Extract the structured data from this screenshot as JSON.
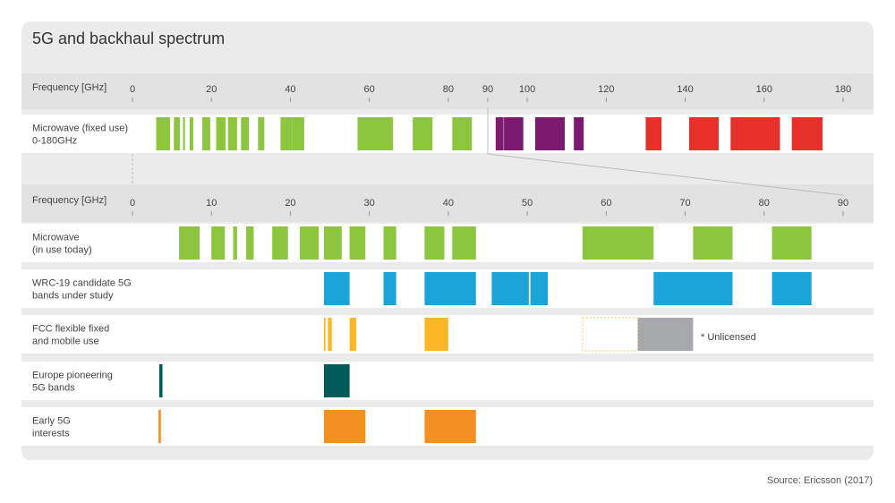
{
  "title": "5G and backhaul spectrum",
  "source": "Source: Ericsson (2017)",
  "chart_data": [
    {
      "type": "bar",
      "axis_label": "Frequency [GHz]",
      "xlim": [
        0,
        180
      ],
      "ticks": [
        0,
        20,
        40,
        60,
        80,
        90,
        100,
        120,
        140,
        160,
        180
      ],
      "rows": [
        {
          "label": "Microwave (fixed use)\n0-180GHz",
          "bands": [
            {
              "start": 6,
              "end": 9.5,
              "color": "#8cc63f"
            },
            {
              "start": 10.5,
              "end": 12,
              "color": "#8cc63f"
            },
            {
              "start": 12.8,
              "end": 13.3,
              "color": "#8cc63f"
            },
            {
              "start": 14.5,
              "end": 15.4,
              "color": "#8cc63f"
            },
            {
              "start": 17.7,
              "end": 19.7,
              "color": "#8cc63f"
            },
            {
              "start": 21.2,
              "end": 23.6,
              "color": "#8cc63f"
            },
            {
              "start": 24.2,
              "end": 26.5,
              "color": "#8cc63f"
            },
            {
              "start": 27.5,
              "end": 29.5,
              "color": "#8cc63f"
            },
            {
              "start": 31.8,
              "end": 33.4,
              "color": "#8cc63f"
            },
            {
              "start": 37.5,
              "end": 40.5,
              "color": "#8cc63f"
            },
            {
              "start": 40.5,
              "end": 43.5,
              "color": "#8cc63f"
            },
            {
              "start": 57,
              "end": 66,
              "color": "#8cc63f"
            },
            {
              "start": 71,
              "end": 76,
              "color": "#8cc63f"
            },
            {
              "start": 81,
              "end": 86,
              "color": "#8cc63f"
            },
            {
              "start": 92,
              "end": 94,
              "color": "#7b1a6f"
            },
            {
              "start": 94.1,
              "end": 99,
              "color": "#7b1a6f"
            },
            {
              "start": 102,
              "end": 109.5,
              "color": "#7b1a6f"
            },
            {
              "start": 111.8,
              "end": 114.3,
              "color": "#7b1a6f"
            },
            {
              "start": 130,
              "end": 134,
              "color": "#e8302b"
            },
            {
              "start": 141,
              "end": 148.5,
              "color": "#e8302b"
            },
            {
              "start": 151.5,
              "end": 164,
              "color": "#e8302b"
            },
            {
              "start": 167,
              "end": 174.8,
              "color": "#e8302b"
            }
          ]
        }
      ]
    },
    {
      "type": "bar",
      "axis_label": "Frequency [GHz]",
      "xlim": [
        0,
        90
      ],
      "ticks": [
        0,
        10,
        20,
        30,
        40,
        50,
        60,
        70,
        80,
        90
      ],
      "annotation": "* Unlicensed",
      "rows": [
        {
          "label": "Microwave\n(in use today)",
          "bands": [
            {
              "start": 5.9,
              "end": 8.5,
              "color": "#8cc63f"
            },
            {
              "start": 10,
              "end": 11.7,
              "color": "#8cc63f"
            },
            {
              "start": 12.75,
              "end": 13.25,
              "color": "#8cc63f"
            },
            {
              "start": 14.4,
              "end": 15.35,
              "color": "#8cc63f"
            },
            {
              "start": 17.7,
              "end": 19.7,
              "color": "#8cc63f"
            },
            {
              "start": 21.2,
              "end": 23.6,
              "color": "#8cc63f"
            },
            {
              "start": 24.25,
              "end": 26.5,
              "color": "#8cc63f"
            },
            {
              "start": 27.5,
              "end": 29.5,
              "color": "#8cc63f"
            },
            {
              "start": 31.8,
              "end": 33.4,
              "color": "#8cc63f"
            },
            {
              "start": 37,
              "end": 39.5,
              "color": "#8cc63f"
            },
            {
              "start": 40.5,
              "end": 43.5,
              "color": "#8cc63f"
            },
            {
              "start": 57,
              "end": 66,
              "color": "#8cc63f"
            },
            {
              "start": 71,
              "end": 76,
              "color": "#8cc63f"
            },
            {
              "start": 81,
              "end": 86,
              "color": "#8cc63f"
            }
          ]
        },
        {
          "label": "WRC-19 candidate 5G\nbands under study",
          "bands": [
            {
              "start": 24.25,
              "end": 27.5,
              "color": "#1ba4d8"
            },
            {
              "start": 31.8,
              "end": 33.4,
              "color": "#1ba4d8"
            },
            {
              "start": 37,
              "end": 43.5,
              "color": "#1ba4d8"
            },
            {
              "start": 45.5,
              "end": 50.2,
              "color": "#1ba4d8"
            },
            {
              "start": 50.4,
              "end": 52.6,
              "color": "#1ba4d8"
            },
            {
              "start": 66,
              "end": 76,
              "color": "#1ba4d8"
            },
            {
              "start": 81,
              "end": 86,
              "color": "#1ba4d8"
            }
          ]
        },
        {
          "label": "FCC flexible fixed\nand mobile use",
          "bands": [
            {
              "start": 24.25,
              "end": 24.45,
              "color": "#fbb725"
            },
            {
              "start": 24.75,
              "end": 25.25,
              "color": "#fbb725"
            },
            {
              "start": 27.5,
              "end": 28.35,
              "color": "#fbb725"
            },
            {
              "start": 37,
              "end": 40,
              "color": "#fbb725"
            },
            {
              "start": 57,
              "end": 64,
              "color": "none",
              "dashed": true
            },
            {
              "start": 64,
              "end": 71,
              "color": "#a7a9ac"
            }
          ]
        },
        {
          "label": "Europe pioneering\n5G bands",
          "bands": [
            {
              "start": 3.4,
              "end": 3.8,
              "color": "#005a55"
            },
            {
              "start": 3.0,
              "end": 3.4,
              "color": "none"
            },
            {
              "start": 3.4,
              "end": 3.8,
              "color": "none"
            },
            {
              "start": 24.25,
              "end": 27.5,
              "color": "#005a55"
            }
          ]
        },
        {
          "label": "Early 5G\ninterests",
          "bands": [
            {
              "start": 3.3,
              "end": 3.6,
              "color": "#f39021"
            },
            {
              "start": 3.0,
              "end": 3.0,
              "color": "none"
            },
            {
              "start": 24.25,
              "end": 29.5,
              "color": "#f39021"
            },
            {
              "start": 37,
              "end": 43.5,
              "color": "#f39021"
            }
          ]
        }
      ]
    }
  ]
}
